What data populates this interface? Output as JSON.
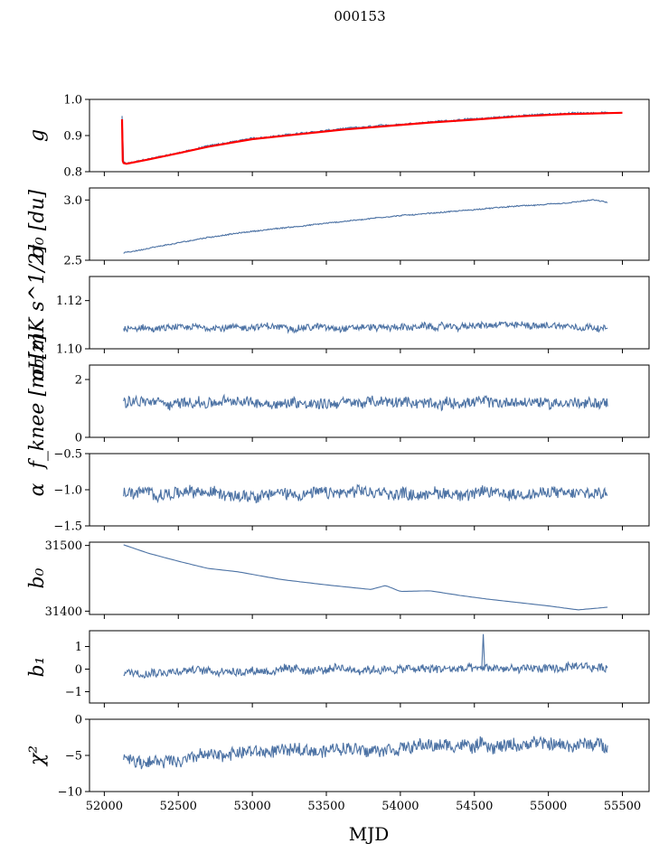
{
  "figure": {
    "title": "000153",
    "xlabel": "MJD",
    "series_color": "#4c72a4",
    "fit_color": "#ff0000"
  },
  "chart_data": [
    {
      "type": "line",
      "name": "g",
      "ylabel": "g",
      "xlim": [
        51900,
        55680
      ],
      "ylim": [
        0.8,
        1.0
      ],
      "yticks": [
        0.8,
        0.9,
        1.0
      ],
      "ytick_labels": [
        "0.8",
        "0.9",
        "1.0"
      ],
      "x": [
        52120,
        52130,
        52150,
        52300,
        52500,
        52700,
        53000,
        53300,
        53600,
        53900,
        54200,
        54500,
        54800,
        55100,
        55400
      ],
      "values": [
        0.955,
        0.826,
        0.822,
        0.835,
        0.852,
        0.871,
        0.892,
        0.905,
        0.918,
        0.928,
        0.938,
        0.946,
        0.955,
        0.961,
        0.964
      ],
      "noise": 0.002,
      "fit": {
        "name": "model",
        "x": [
          52120,
          52125,
          52130,
          52150,
          52300,
          52500,
          52700,
          53000,
          53300,
          53600,
          53900,
          54200,
          54500,
          54800,
          55100,
          55400,
          55500
        ],
        "values": [
          0.945,
          0.83,
          0.824,
          0.822,
          0.834,
          0.851,
          0.869,
          0.89,
          0.903,
          0.916,
          0.926,
          0.936,
          0.944,
          0.953,
          0.959,
          0.962,
          0.963
        ]
      }
    },
    {
      "type": "line",
      "name": "sigma0_du",
      "ylabel": "σ₀ [du]",
      "xlim": [
        51900,
        55680
      ],
      "ylim": [
        2.5,
        3.1
      ],
      "yticks": [
        2.5,
        3.0
      ],
      "ytick_labels": [
        "2.5",
        "3.0"
      ],
      "x": [
        52130,
        52400,
        52700,
        53000,
        53300,
        53600,
        53900,
        54200,
        54500,
        54800,
        55100,
        55300,
        55400
      ],
      "values": [
        2.56,
        2.62,
        2.69,
        2.74,
        2.78,
        2.82,
        2.86,
        2.89,
        2.92,
        2.95,
        2.97,
        3.0,
        2.98
      ],
      "noise": 0.004
    },
    {
      "type": "line",
      "name": "sigma0_mK",
      "ylabel": "σ₀[mK s^1/2]",
      "xlim": [
        51900,
        55680
      ],
      "ylim": [
        1.1,
        1.13
      ],
      "yticks": [
        1.1,
        1.12
      ],
      "ytick_labels": [
        "1.10",
        "1.12"
      ],
      "x": [
        52130,
        52800,
        53500,
        54200,
        54900,
        55400
      ],
      "values": [
        1.108,
        1.109,
        1.109,
        1.109,
        1.11,
        1.109
      ],
      "noise": 0.0012
    },
    {
      "type": "line",
      "name": "fknee",
      "ylabel": "f_knee [mHz]",
      "xlim": [
        51900,
        55680
      ],
      "ylim": [
        0,
        2.5
      ],
      "yticks": [
        0,
        2
      ],
      "ytick_labels": [
        "0",
        "2"
      ],
      "x": [
        52130,
        55400
      ],
      "values": [
        1.2,
        1.2
      ],
      "noise": 0.16
    },
    {
      "type": "line",
      "name": "alpha",
      "ylabel": "α",
      "xlim": [
        51900,
        55680
      ],
      "ylim": [
        -1.5,
        -0.5
      ],
      "yticks": [
        -1.5,
        -1.0,
        -0.5
      ],
      "ytick_labels": [
        "−1.5",
        "−1.0",
        "−0.5"
      ],
      "x": [
        52130,
        55400
      ],
      "values": [
        -1.05,
        -1.05
      ],
      "noise": 0.07
    },
    {
      "type": "line",
      "name": "b0",
      "ylabel": "b₀",
      "xlim": [
        51900,
        55680
      ],
      "ylim": [
        31395,
        31505
      ],
      "yticks": [
        31400,
        31500
      ],
      "ytick_labels": [
        "31400",
        "31500"
      ],
      "x": [
        52130,
        52300,
        52500,
        52700,
        52900,
        53200,
        53500,
        53800,
        53900,
        54000,
        54200,
        54400,
        54600,
        55000,
        55200,
        55400
      ],
      "values": [
        31501,
        31488,
        31476,
        31465,
        31460,
        31448,
        31440,
        31433,
        31439,
        31430,
        31431,
        31424,
        31418,
        31408,
        31402,
        31406
      ],
      "noise": 0
    },
    {
      "type": "line",
      "name": "b1",
      "ylabel": "b₁",
      "xlim": [
        51900,
        55680
      ],
      "ylim": [
        -1.5,
        1.7
      ],
      "yticks": [
        -1,
        0,
        1
      ],
      "ytick_labels": [
        "−1",
        "0",
        "1"
      ],
      "x": [
        52130,
        55400
      ],
      "values": [
        -0.1,
        0.05
      ],
      "noise": 0.16
    },
    {
      "type": "line",
      "name": "chi2",
      "ylabel": "χ²",
      "xlim": [
        51900,
        55680
      ],
      "ylim": [
        -10,
        0
      ],
      "yticks": [
        -10,
        -5,
        0
      ],
      "ytick_labels": [
        "−10",
        "−5",
        "0"
      ],
      "x": [
        52130,
        52300,
        52600,
        53000,
        53500,
        54000,
        54500,
        55000,
        55400
      ],
      "values": [
        -5,
        -6,
        -5.2,
        -4.5,
        -4.2,
        -3.8,
        -3.6,
        -3.5,
        -3.6
      ],
      "noise": 0.75
    }
  ],
  "xaxis": {
    "ticks": [
      52000,
      52500,
      53000,
      53500,
      54000,
      54500,
      55000,
      55500
    ],
    "tick_labels": [
      "52000",
      "52500",
      "53000",
      "53500",
      "54000",
      "54500",
      "55000",
      "55500"
    ]
  }
}
